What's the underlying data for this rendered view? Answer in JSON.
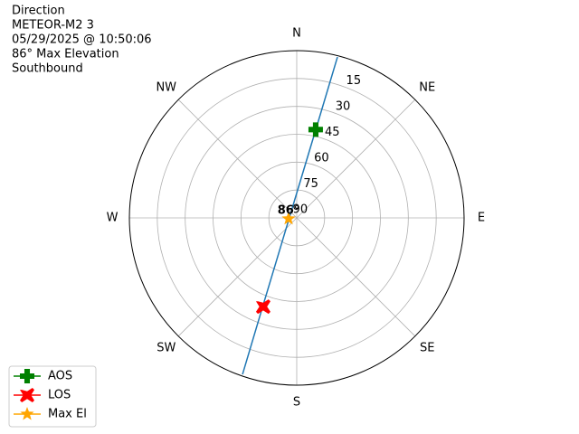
{
  "chart_data": {
    "type": "polar",
    "title_lines": [
      "Direction",
      "METEOR-M2 3",
      "05/29/2025 @ 10:50:06",
      "86° Max Elevation",
      "Southbound"
    ],
    "xticks": [
      {
        "value": 0,
        "label": "N"
      },
      {
        "value": 45,
        "label": "NE"
      },
      {
        "value": 90,
        "label": "E"
      },
      {
        "value": 135,
        "label": "SE"
      },
      {
        "value": 180,
        "label": "S"
      },
      {
        "value": 225,
        "label": "SW"
      },
      {
        "value": 270,
        "label": "W"
      },
      {
        "value": 315,
        "label": "NW"
      }
    ],
    "ylim": [
      90,
      0
    ],
    "yticks": [
      90,
      75,
      60,
      45,
      30,
      15
    ],
    "grid": true,
    "legend": "lower left",
    "series": [
      {
        "color": "#1f77b4",
        "x": [
          14.2,
          12.6,
          4.6,
          353.6,
          288.4,
          220.3,
          208.9,
          200.8,
          199.1
        ],
        "values": [
          0.7,
          36.3,
          71.7,
          80.2,
          86.2,
          80.4,
          71.9,
          36.5,
          0.9
        ]
      },
      {
        "name": "AOS",
        "color": "#008000",
        "marker": "plus",
        "x": [
          12.1
        ],
        "values": [
          41.4
        ]
      },
      {
        "name": "LOS",
        "color": "#ff0000",
        "marker": "x",
        "x": [
          200.7
        ],
        "values": [
          39
        ]
      },
      {
        "name": "Max El",
        "color": "#ffa500",
        "marker": "star",
        "x": [
          264
        ],
        "values": [
          85.6
        ]
      }
    ],
    "annotations": [
      {
        "text": "86°",
        "x": 264,
        "y": 85.6
      }
    ]
  }
}
